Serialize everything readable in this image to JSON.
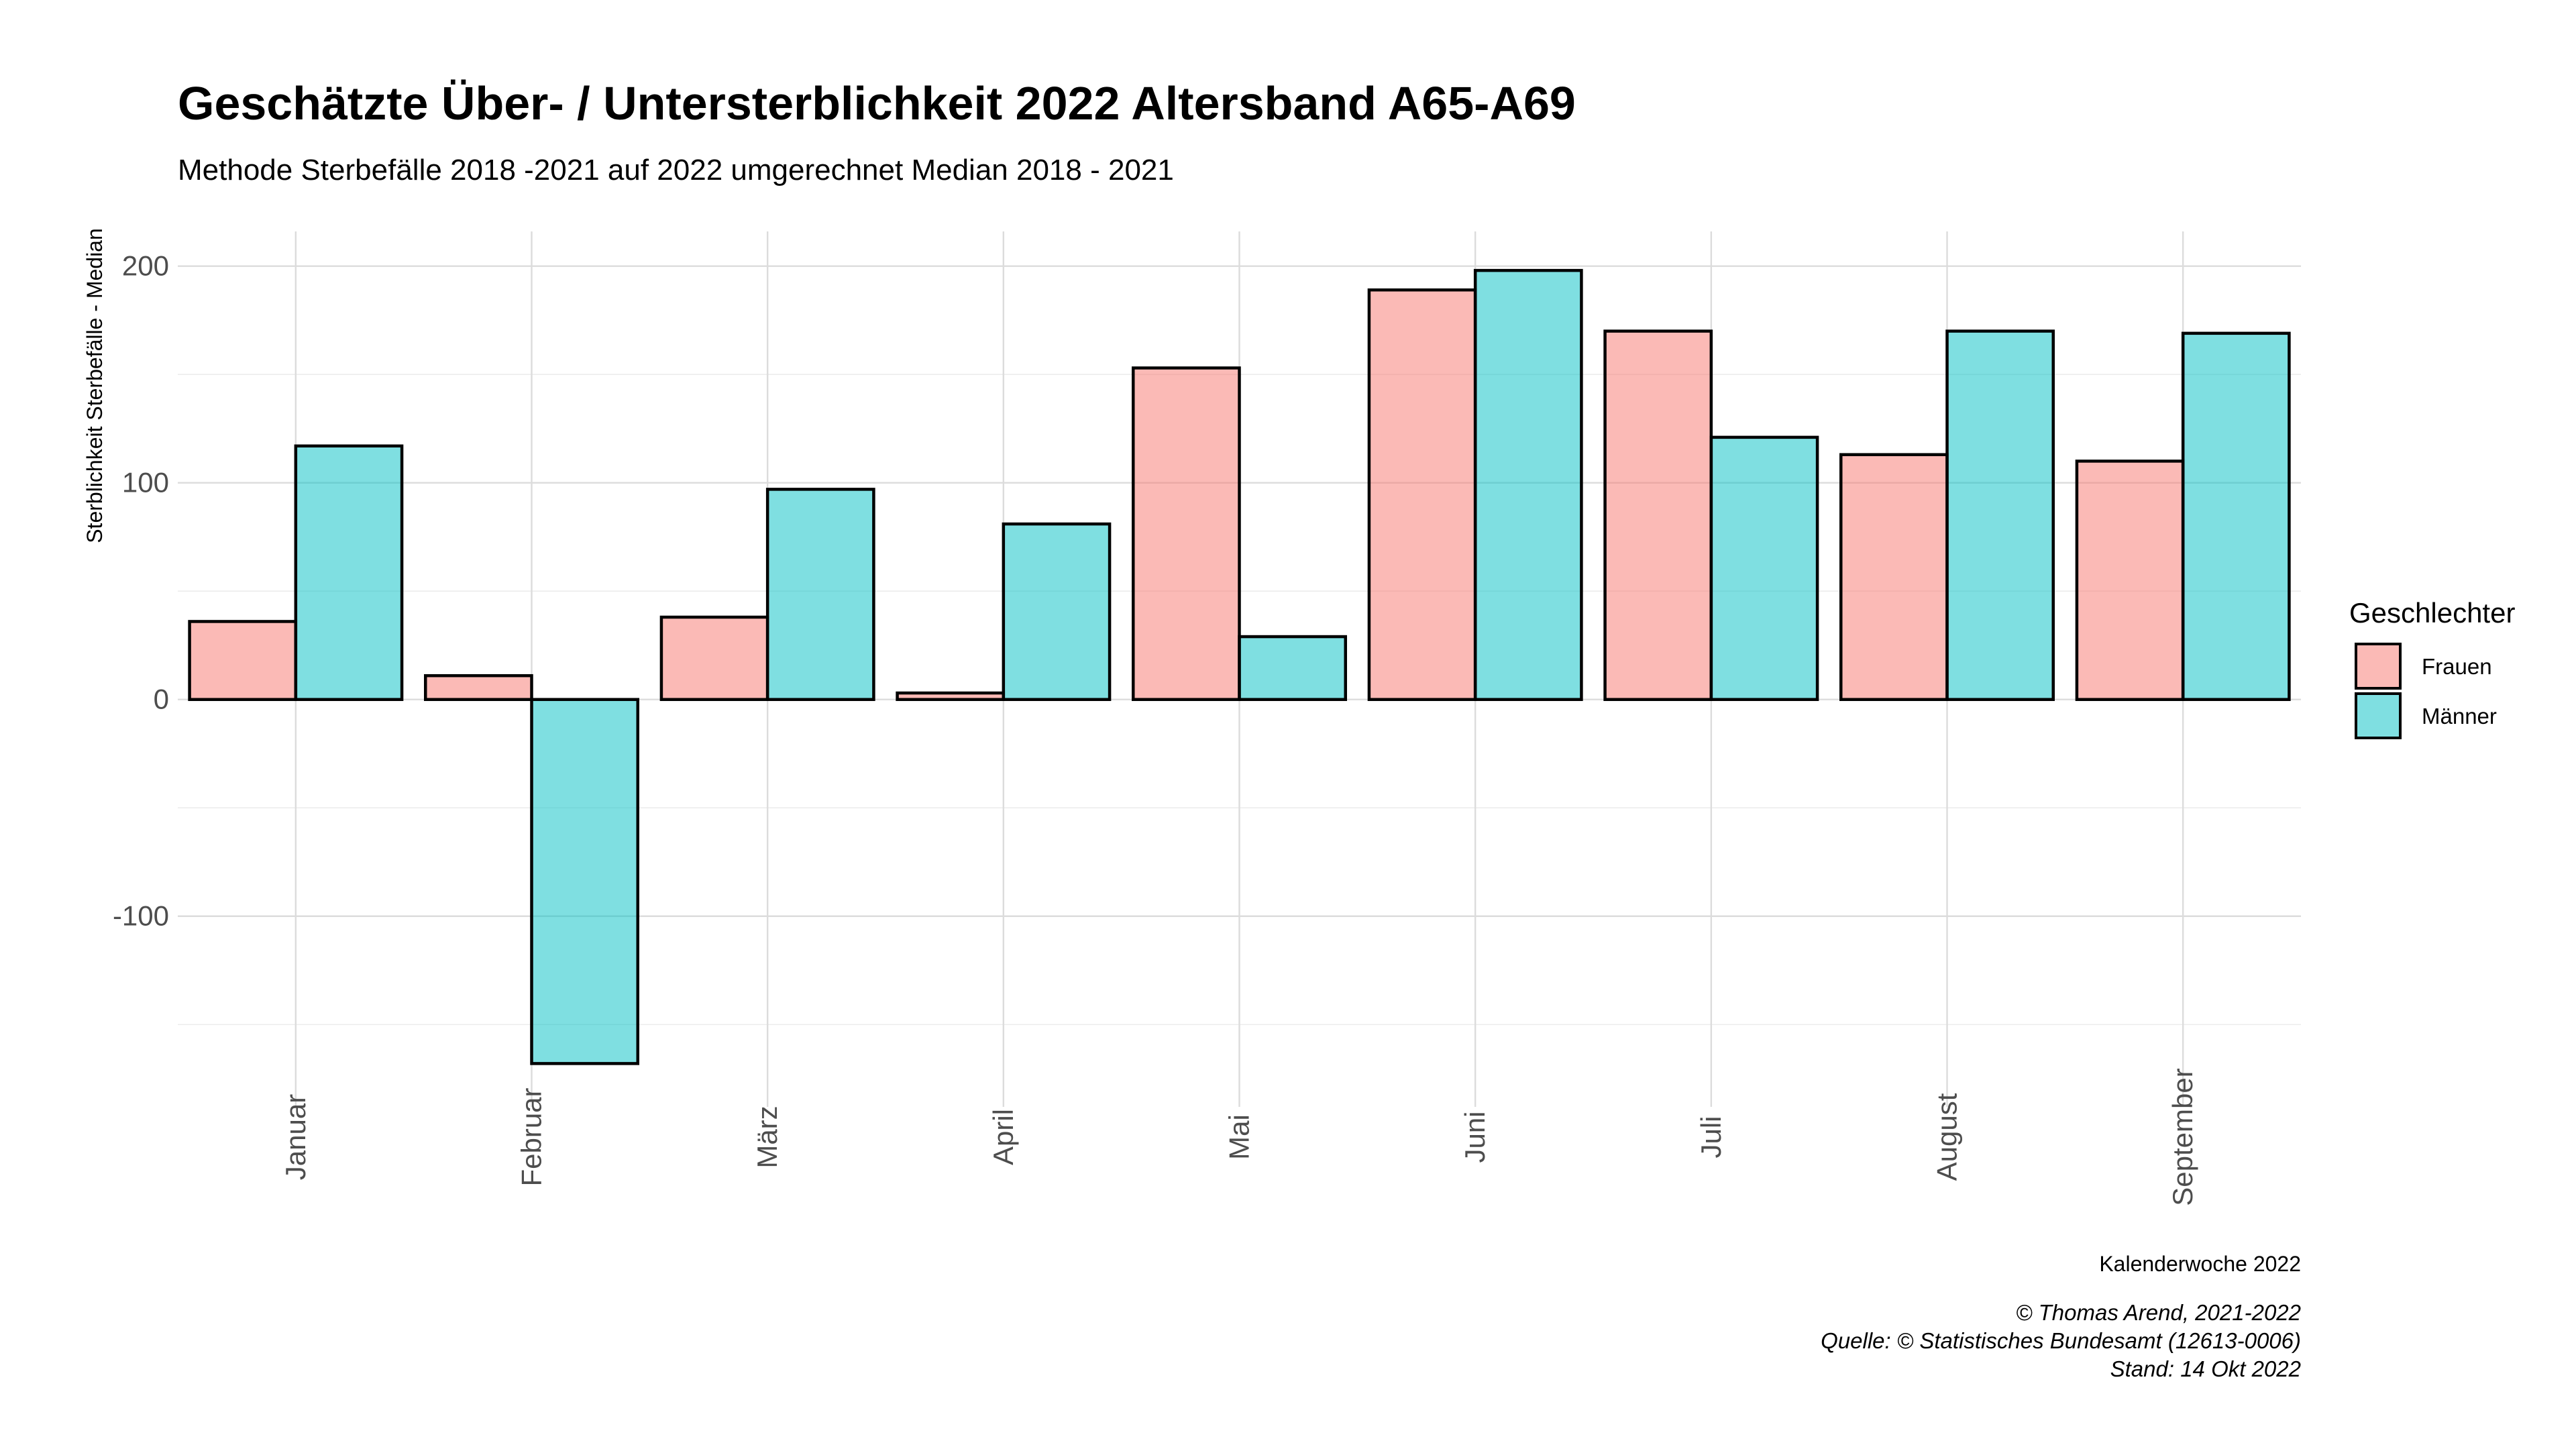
{
  "colors": {
    "frauen": "#F8766D",
    "maenner": "#00BFC4"
  },
  "chart_data": {
    "type": "bar",
    "title": "Geschätzte Über- / Untersterblichkeit 2022 Altersband A65-A69",
    "subtitle": "Methode Sterbefälle 2018 -2021 auf 2022 umgerechnet Median 2018 - 2021",
    "xlabel": "Kalenderwoche 2022",
    "ylabel": "Sterblichkeit Sterbefälle - Median",
    "ylim": [
      -188,
      216
    ],
    "yticks": [
      -100,
      0,
      100,
      200
    ],
    "grid": true,
    "legend": {
      "title": "Geschlechter",
      "position": "right"
    },
    "categories": [
      "Januar",
      "Februar",
      "März",
      "April",
      "Mai",
      "Juni",
      "Juli",
      "August",
      "September"
    ],
    "series": [
      {
        "name": "Frauen",
        "color_key": "frauen",
        "values": [
          36,
          11,
          38,
          3,
          153,
          189,
          170,
          113,
          110
        ]
      },
      {
        "name": "Männer",
        "color_key": "maenner",
        "values": [
          117,
          -168,
          97,
          81,
          29,
          198,
          121,
          170,
          169
        ]
      }
    ]
  },
  "caption": {
    "lines": [
      "© Thomas Arend, 2021-2022",
      "Quelle: © Statistisches Bundesamt (12613-0006)",
      "Stand: 14 Okt 2022"
    ]
  }
}
